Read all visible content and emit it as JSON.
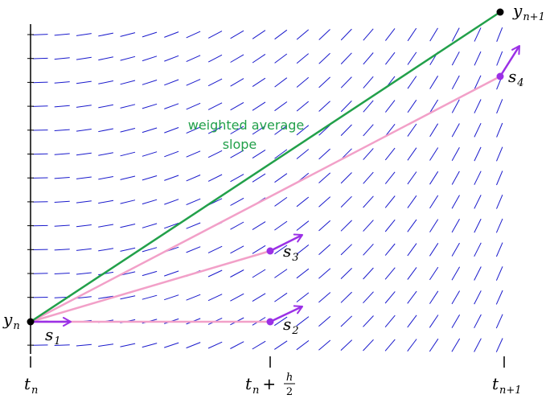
{
  "colors": {
    "field": "#1a1acc",
    "average": "#22a04a",
    "chord": "#f2a0c8",
    "slope_arrow": "#9b30e6",
    "point_purple": "#9b30e6",
    "point_black": "#000000"
  },
  "labels": {
    "yn": {
      "base": "y",
      "sub": "n"
    },
    "yn1": {
      "base": "y",
      "sub": "n+1"
    },
    "s1": {
      "base": "s",
      "sub": "1"
    },
    "s2": {
      "base": "s",
      "sub": "2"
    },
    "s3": {
      "base": "s",
      "sub": "3"
    },
    "s4": {
      "base": "s",
      "sub": "4"
    },
    "avg_line1": "weighted average",
    "avg_line2": "slope",
    "tick_tn": {
      "base": "t",
      "sub": "n"
    },
    "tick_mid": {
      "base": "t",
      "sub": "n",
      "plus": "+",
      "num": "h",
      "den": "2"
    },
    "tick_tn1": {
      "base": "t",
      "sub": "n+1"
    }
  }
}
